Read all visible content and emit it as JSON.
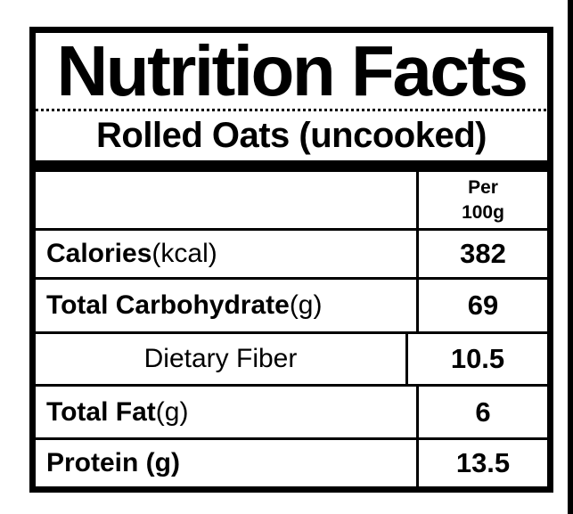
{
  "label": {
    "title": "Nutrition Facts",
    "subtitle": "Rolled Oats (uncooked)",
    "column_header": {
      "line1": "Per",
      "line2": "100g"
    },
    "rows": [
      {
        "name_bold": "Calories",
        "name_regular": " (kcal)",
        "value": "382"
      },
      {
        "name_bold": "Total Carbohydrate",
        "name_regular": " (g)",
        "value": "69"
      },
      {
        "name_bold": "",
        "name_regular": "Dietary Fiber",
        "value": "10.5"
      },
      {
        "name_bold": "Total Fat",
        "name_regular": " (g)",
        "value": "6"
      },
      {
        "name_bold": "Protein (g)",
        "name_regular": "",
        "value": "13.5"
      }
    ],
    "colors": {
      "border": "#000000",
      "background": "#ffffff",
      "text": "#000000"
    }
  }
}
